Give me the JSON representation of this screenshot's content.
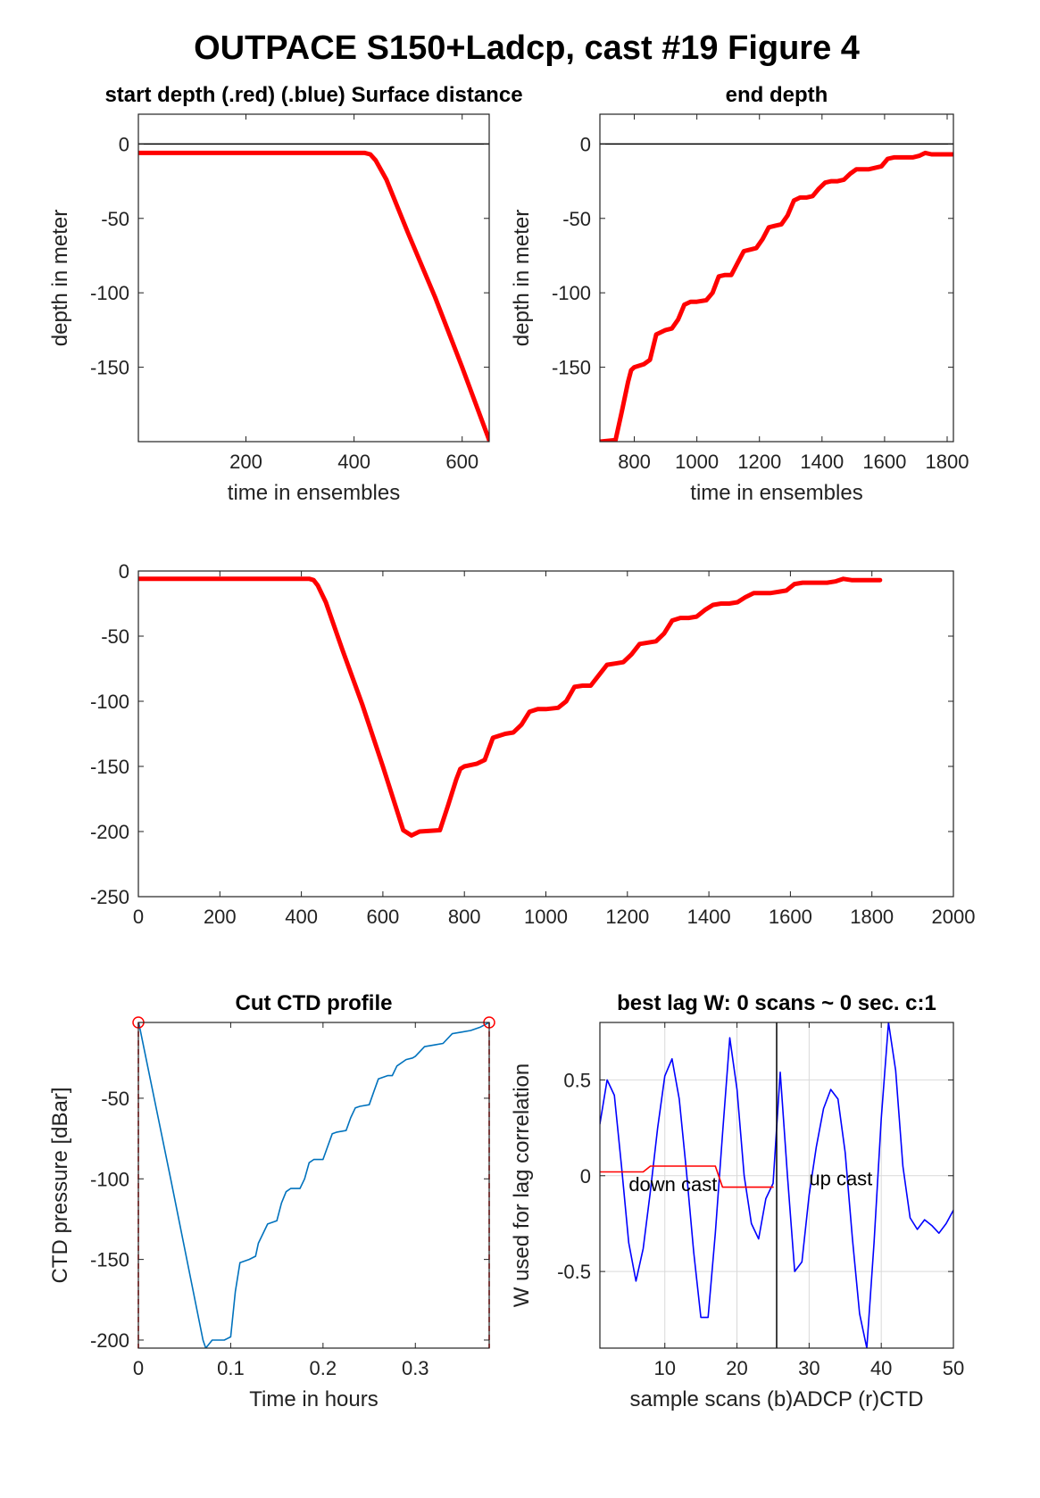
{
  "figure_title": "OUTPACE S150+Ladcp, cast #19   Figure 4",
  "colors": {
    "red": "#ff0000",
    "blue": "#0000ff",
    "ctd": "#0072bd",
    "axis": "#222222",
    "grid": "#d9d9d9"
  },
  "chart_data": [
    {
      "id": "start_depth",
      "type": "line",
      "title": "start depth (.red) (.blue) Surface distance",
      "xlabel": "time in ensembles",
      "ylabel": "depth in meter",
      "xlim": [
        1,
        650
      ],
      "ylim": [
        -200,
        20
      ],
      "xticks": [
        200,
        400,
        600
      ],
      "yticks": [
        0,
        -50,
        -100,
        -150
      ],
      "hline": 0,
      "series": [
        {
          "color": "#ff0000",
          "x": [
            1,
            420,
            430,
            440,
            460,
            500,
            550,
            600,
            650
          ],
          "y": [
            -6,
            -6,
            -7,
            -11,
            -24,
            -60,
            -103,
            -150,
            -199
          ]
        }
      ]
    },
    {
      "id": "end_depth",
      "type": "line",
      "title": "end depth",
      "xlabel": "time in ensembles",
      "ylabel": "depth in meter",
      "xlim": [
        690,
        1820
      ],
      "ylim": [
        -200,
        20
      ],
      "xticks": [
        800,
        1000,
        1200,
        1400,
        1600,
        1800
      ],
      "yticks": [
        0,
        -50,
        -100,
        -150
      ],
      "hline": 0,
      "series": [
        {
          "color": "#ff0000",
          "x": [
            690,
            740,
            760,
            780,
            790,
            800,
            830,
            850,
            870,
            900,
            920,
            940,
            960,
            980,
            1000,
            1030,
            1050,
            1070,
            1090,
            1110,
            1130,
            1150,
            1170,
            1190,
            1210,
            1230,
            1250,
            1270,
            1290,
            1310,
            1330,
            1350,
            1370,
            1390,
            1410,
            1430,
            1450,
            1470,
            1490,
            1510,
            1530,
            1550,
            1570,
            1590,
            1610,
            1630,
            1650,
            1670,
            1690,
            1710,
            1730,
            1750,
            1770,
            1800,
            1820
          ],
          "y": [
            -200,
            -199,
            -180,
            -160,
            -152,
            -150,
            -148,
            -145,
            -128,
            -125,
            -124,
            -118,
            -108,
            -106,
            -106,
            -105,
            -100,
            -89,
            -88,
            -88,
            -80,
            -72,
            -71,
            -70,
            -64,
            -56,
            -55,
            -54,
            -48,
            -38,
            -36,
            -36,
            -35,
            -30,
            -26,
            -25,
            -25,
            -24,
            -20,
            -17,
            -17,
            -17,
            -16,
            -15,
            -10,
            -9,
            -9,
            -9,
            -9,
            -8,
            -6,
            -7,
            -7,
            -7,
            -7
          ]
        }
      ]
    },
    {
      "id": "full_profile",
      "type": "line",
      "title": "",
      "xlabel": "",
      "ylabel": "",
      "xlim": [
        0,
        2000
      ],
      "ylim": [
        -250,
        0
      ],
      "xticks": [
        0,
        200,
        400,
        600,
        800,
        1000,
        1200,
        1400,
        1600,
        1800,
        2000
      ],
      "yticks": [
        0,
        -50,
        -100,
        -150,
        -200,
        -250
      ],
      "series": [
        {
          "color": "#ff0000",
          "x": [
            0,
            420,
            430,
            440,
            460,
            500,
            550,
            600,
            650,
            670,
            690,
            740,
            760,
            780,
            790,
            800,
            830,
            850,
            870,
            900,
            920,
            940,
            960,
            980,
            1000,
            1030,
            1050,
            1070,
            1090,
            1110,
            1130,
            1150,
            1170,
            1190,
            1210,
            1230,
            1250,
            1270,
            1290,
            1310,
            1330,
            1350,
            1370,
            1390,
            1410,
            1430,
            1450,
            1470,
            1490,
            1510,
            1530,
            1550,
            1570,
            1590,
            1610,
            1630,
            1650,
            1670,
            1690,
            1710,
            1730,
            1750,
            1770,
            1800,
            1820
          ],
          "y": [
            -6,
            -6,
            -7,
            -11,
            -24,
            -60,
            -103,
            -150,
            -199,
            -203,
            -200,
            -199,
            -180,
            -160,
            -152,
            -150,
            -148,
            -145,
            -128,
            -125,
            -124,
            -118,
            -108,
            -106,
            -106,
            -105,
            -100,
            -89,
            -88,
            -88,
            -80,
            -72,
            -71,
            -70,
            -64,
            -56,
            -55,
            -54,
            -48,
            -38,
            -36,
            -36,
            -35,
            -30,
            -26,
            -25,
            -25,
            -24,
            -20,
            -17,
            -17,
            -17,
            -16,
            -15,
            -10,
            -9,
            -9,
            -9,
            -9,
            -8,
            -6,
            -7,
            -7,
            -7,
            -7
          ]
        }
      ]
    },
    {
      "id": "cut_ctd",
      "type": "line",
      "title": "Cut CTD profile",
      "xlabel": "Time in hours",
      "ylabel": "CTD pressure [dBar]",
      "xlim": [
        0,
        0.38
      ],
      "ylim": [
        -205,
        -3
      ],
      "xticks": [
        0,
        0.1,
        0.2,
        0.3
      ],
      "xticklabels": [
        "0",
        "0.1",
        "0.2",
        "0.3"
      ],
      "yticks": [
        -50,
        -100,
        -150,
        -200
      ],
      "series": [
        {
          "color": "#0072bd",
          "x": [
            0,
            0.035,
            0.07,
            0.073,
            0.08,
            0.093,
            0.1,
            0.105,
            0.11,
            0.12,
            0.127,
            0.13,
            0.14,
            0.15,
            0.155,
            0.16,
            0.165,
            0.175,
            0.18,
            0.185,
            0.19,
            0.2,
            0.205,
            0.21,
            0.215,
            0.225,
            0.23,
            0.235,
            0.24,
            0.25,
            0.255,
            0.26,
            0.27,
            0.275,
            0.28,
            0.29,
            0.297,
            0.3,
            0.31,
            0.32,
            0.33,
            0.34,
            0.35,
            0.36,
            0.37,
            0.38
          ],
          "y": [
            -2,
            -100,
            -200,
            -205,
            -200,
            -200,
            -198,
            -170,
            -152,
            -150,
            -148,
            -140,
            -128,
            -126,
            -115,
            -108,
            -106,
            -106,
            -100,
            -90,
            -88,
            -88,
            -80,
            -72,
            -71,
            -70,
            -62,
            -56,
            -55,
            -54,
            -46,
            -38,
            -36,
            -36,
            -30,
            -26,
            -25,
            -24,
            -18,
            -17,
            -16,
            -10,
            -9,
            -8,
            -6,
            -3
          ]
        }
      ],
      "markers": [
        {
          "x": 0,
          "y": -3,
          "color": "#ff0000"
        },
        {
          "x": 0.38,
          "y": -3,
          "color": "#ff0000"
        }
      ],
      "vlines": [
        {
          "x": 0,
          "color": "#ff0000",
          "style": "dashed"
        },
        {
          "x": 0.38,
          "color": "#ff0000",
          "style": "dashed"
        }
      ]
    },
    {
      "id": "best_lag",
      "type": "line",
      "title": "best lag W: 0 scans ~ 0 sec.  c:1",
      "xlabel": "sample scans (b)ADCP (r)CTD",
      "ylabel": "W used for lag correlation",
      "xlim": [
        1,
        50
      ],
      "ylim": [
        -0.9,
        0.8
      ],
      "xticks": [
        10,
        20,
        30,
        40,
        50
      ],
      "yticks": [
        0.5,
        0,
        -0.5
      ],
      "grid": true,
      "vline": 25.5,
      "annotations": [
        {
          "text": "down cast",
          "x": 5,
          "y": -0.08
        },
        {
          "text": "up cast",
          "x": 30,
          "y": -0.05
        }
      ],
      "series": [
        {
          "color": "#0000ff",
          "x": [
            1,
            2,
            3,
            4,
            5,
            6,
            7,
            8,
            9,
            10,
            11,
            12,
            13,
            14,
            15,
            16,
            17,
            18,
            19,
            20,
            21,
            22,
            23,
            24,
            25,
            26,
            27,
            28,
            29,
            30,
            31,
            32,
            33,
            34,
            35,
            36,
            37,
            38,
            39,
            40,
            41,
            42,
            43,
            44,
            45,
            46,
            47,
            48,
            49,
            50
          ],
          "y": [
            0.27,
            0.5,
            0.42,
            0.05,
            -0.35,
            -0.55,
            -0.38,
            -0.08,
            0.25,
            0.52,
            0.61,
            0.4,
            0.02,
            -0.4,
            -0.74,
            -0.74,
            -0.3,
            0.22,
            0.72,
            0.45,
            0.0,
            -0.25,
            -0.33,
            -0.12,
            -0.04,
            0.54,
            0.0,
            -0.5,
            -0.45,
            -0.1,
            0.15,
            0.35,
            0.45,
            0.4,
            0.12,
            -0.33,
            -0.72,
            -0.9,
            -0.35,
            0.3,
            0.8,
            0.55,
            0.05,
            -0.22,
            -0.28,
            -0.23,
            -0.26,
            -0.3,
            -0.25,
            -0.18
          ]
        },
        {
          "color": "#ff0000",
          "x": [
            1,
            7,
            8,
            17,
            18,
            25
          ],
          "y": [
            0.02,
            0.02,
            0.05,
            0.05,
            -0.06,
            -0.06
          ]
        }
      ]
    }
  ]
}
